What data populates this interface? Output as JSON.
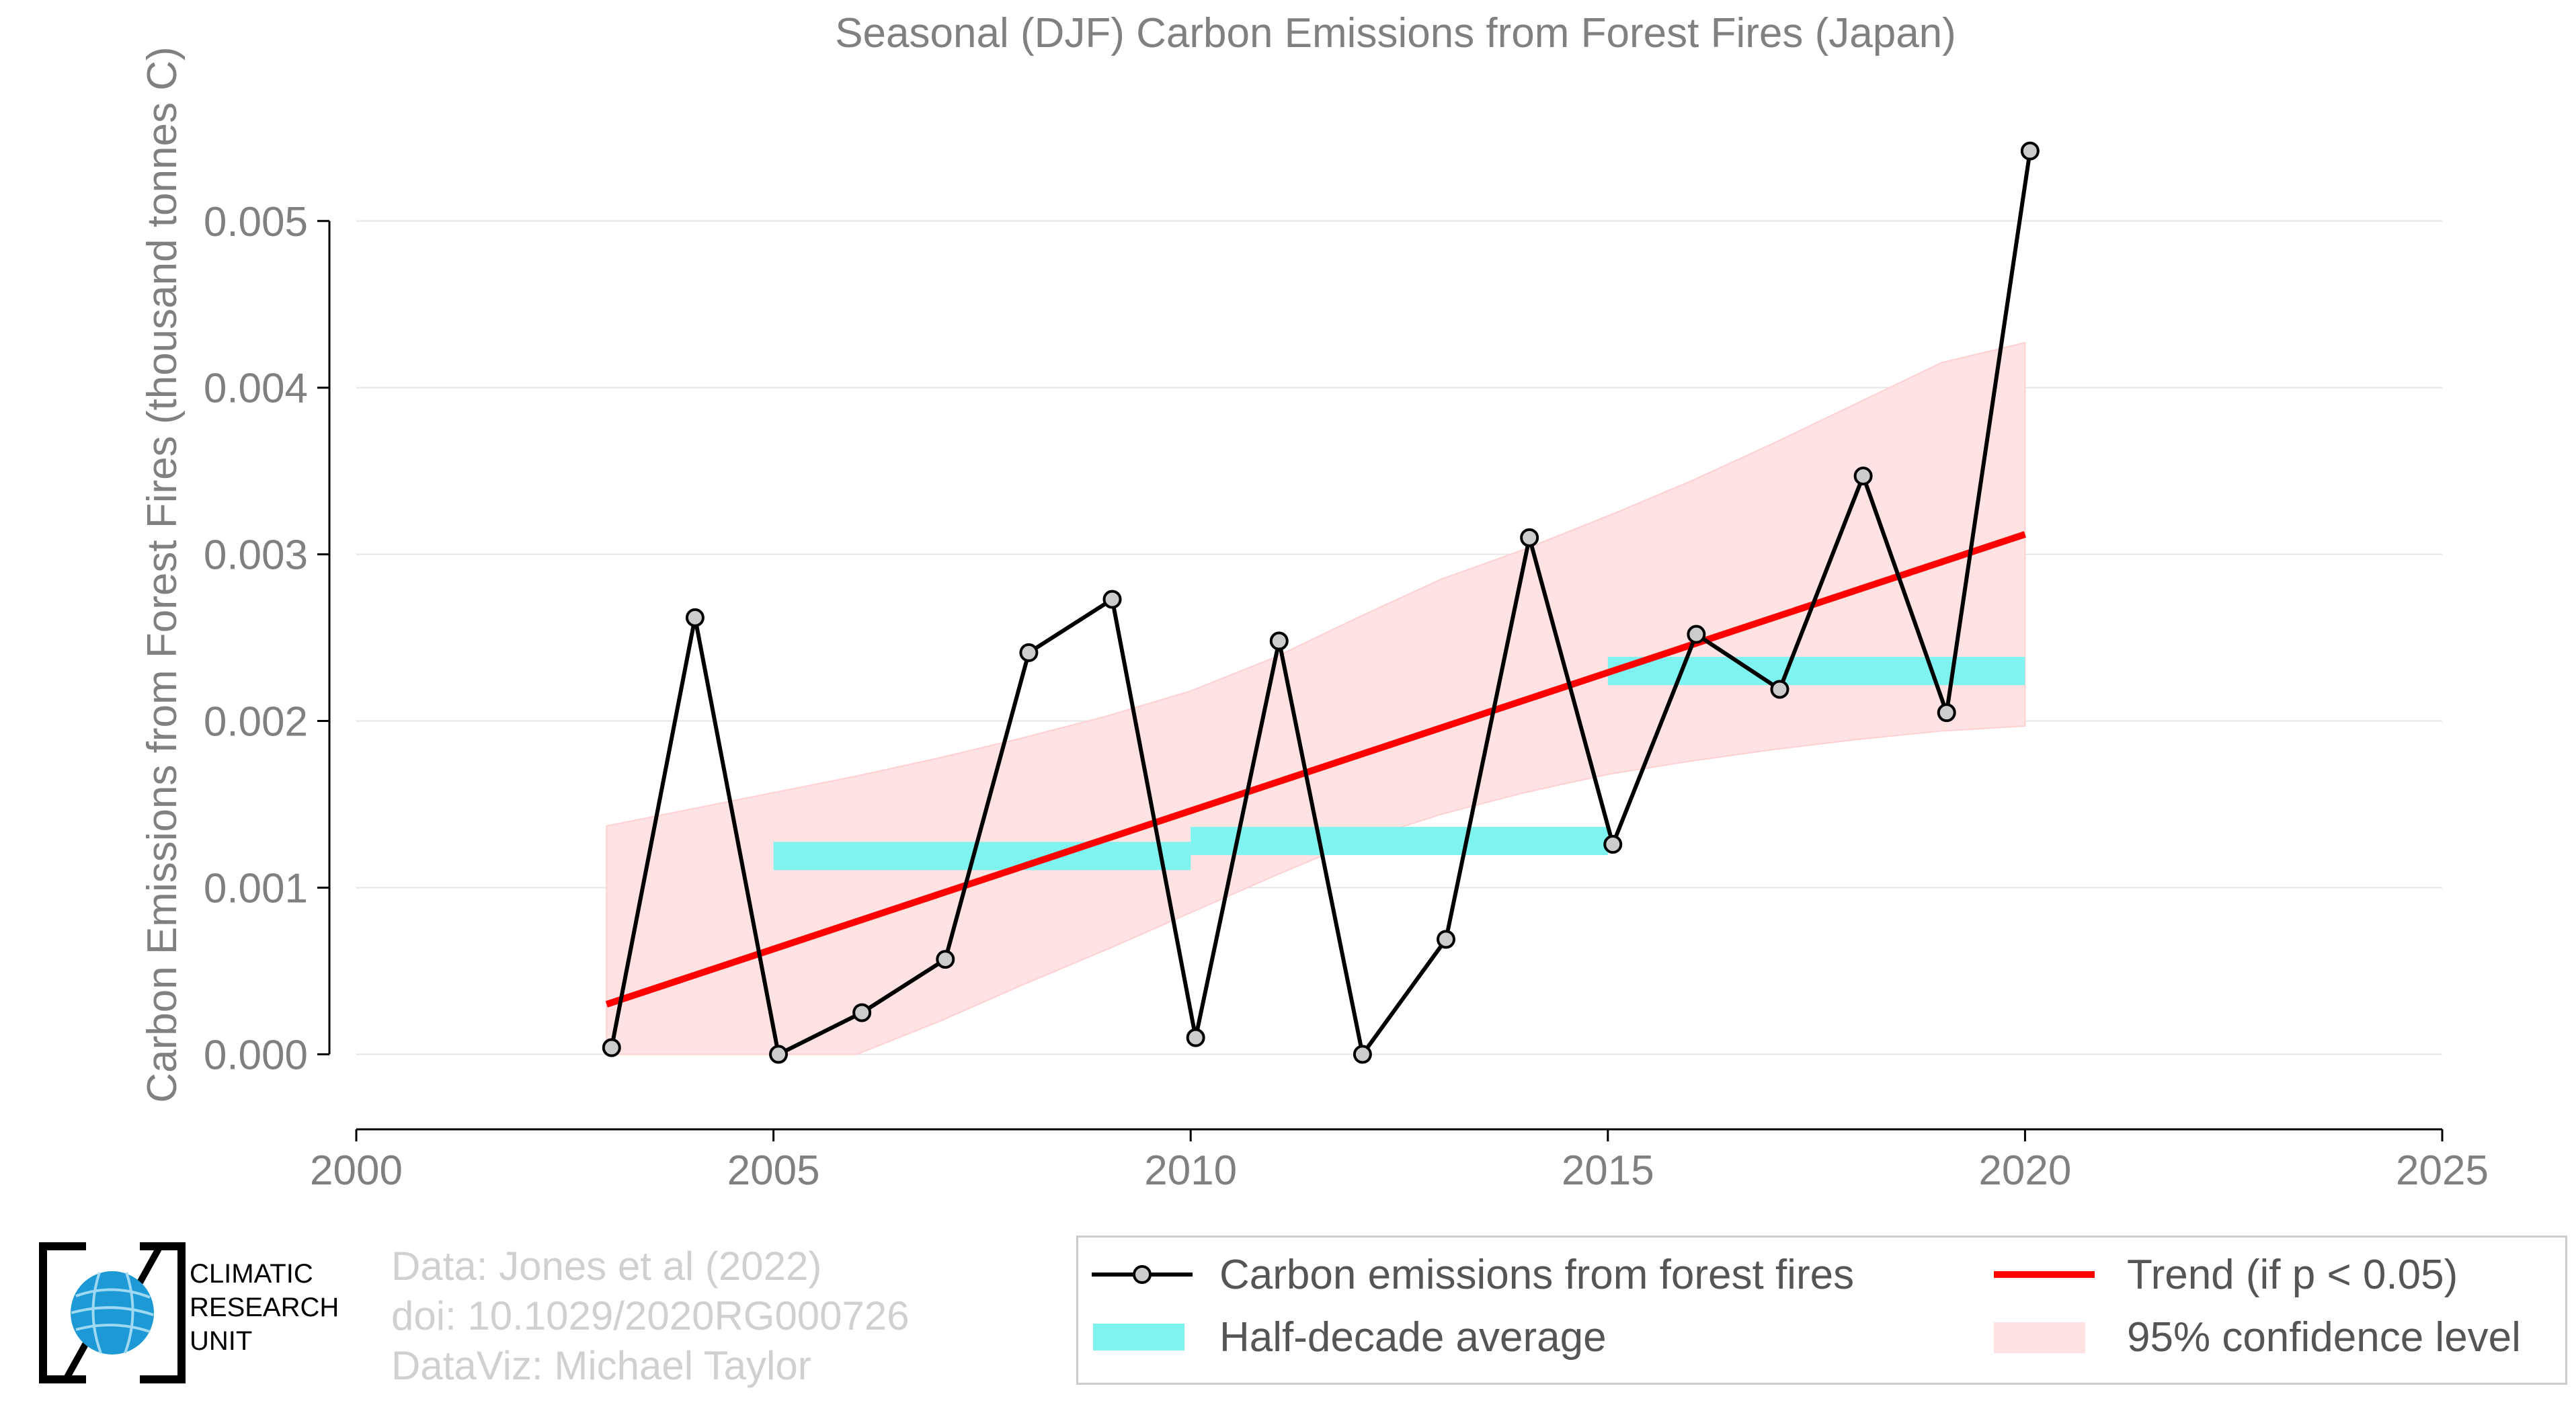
{
  "chart_data": {
    "type": "line",
    "title": "Seasonal (DJF) Carbon Emissions from Forest Fires (Japan)",
    "xlabel": "",
    "ylabel": "Carbon Emissions from Forest Fires (thousand tonnes C)",
    "xlim": [
      2000,
      2025
    ],
    "ylim": [
      -0.00045,
      0.0056
    ],
    "xticks": [
      2000,
      2005,
      2010,
      2015,
      2020,
      2025
    ],
    "yticks": [
      0.0,
      0.001,
      0.002,
      0.003,
      0.004,
      0.005
    ],
    "ytick_labels": [
      "0.000",
      "0.001",
      "0.002",
      "0.003",
      "0.004",
      "0.005"
    ],
    "grid": "horizontal",
    "series": [
      {
        "name": "Carbon emissions from forest fires",
        "x": [
          2003,
          2004,
          2005,
          2006,
          2007,
          2008,
          2009,
          2010,
          2011,
          2012,
          2013,
          2014,
          2015,
          2016,
          2017,
          2018,
          2019,
          2020
        ],
        "values": [
          4e-05,
          0.00262,
          0.0,
          0.00025,
          0.00057,
          0.00241,
          0.00273,
          0.0001,
          0.00248,
          0.0,
          0.00069,
          0.0031,
          0.00126,
          0.00252,
          0.00219,
          0.00347,
          0.00205,
          0.00542
        ],
        "color": "#000000"
      },
      {
        "name": "Trend (if p < 0.05)",
        "x": [
          2003,
          2020
        ],
        "values": [
          0.0003,
          0.00312
        ],
        "color": "#ff0000"
      },
      {
        "name": "Half-decade average",
        "segments": [
          {
            "x0": 2005,
            "x1": 2010,
            "value": 0.00119
          },
          {
            "x0": 2010,
            "x1": 2015,
            "value": 0.00128
          },
          {
            "x0": 2015,
            "x1": 2020,
            "value": 0.0023
          }
        ],
        "color": "#7ff3f0"
      },
      {
        "name": "95% confidence level",
        "x": [
          2003,
          2004,
          2005,
          2006,
          2007,
          2008,
          2009,
          2010,
          2011,
          2012,
          2013,
          2014,
          2015,
          2016,
          2017,
          2018,
          2019,
          2020
        ],
        "lower": [
          0.0,
          0.0,
          0.0,
          0.0,
          0.0002,
          0.00042,
          0.00063,
          0.00085,
          0.00107,
          0.00128,
          0.00144,
          0.00157,
          0.00168,
          0.00176,
          0.00183,
          0.00189,
          0.00194,
          0.00197
        ],
        "upper": [
          0.00137,
          0.00147,
          0.00157,
          0.00167,
          0.00178,
          0.0019,
          0.00203,
          0.00218,
          0.00238,
          0.00262,
          0.00285,
          0.00303,
          0.00323,
          0.00344,
          0.00367,
          0.00391,
          0.00415,
          0.00427
        ],
        "color": "#ffe2e2"
      }
    ],
    "legend": {
      "position": "bottom-right",
      "entries": [
        "Carbon emissions from forest fires",
        "Trend (if p < 0.05)",
        "Half-decade average",
        "95% confidence level"
      ]
    }
  },
  "footer": {
    "source_lines": [
      "Data: Jones et al (2022)",
      "doi: 10.1029/2020RG000726",
      "DataViz: Michael Taylor"
    ],
    "logo_text": [
      "CLIMATIC",
      "RESEARCH",
      "UNIT"
    ]
  },
  "colors": {
    "axis_text": "#808080",
    "gridline": "#e6e6e6",
    "footer_text": "#d0d0d0",
    "logo_blue": "#1d9ad6"
  }
}
